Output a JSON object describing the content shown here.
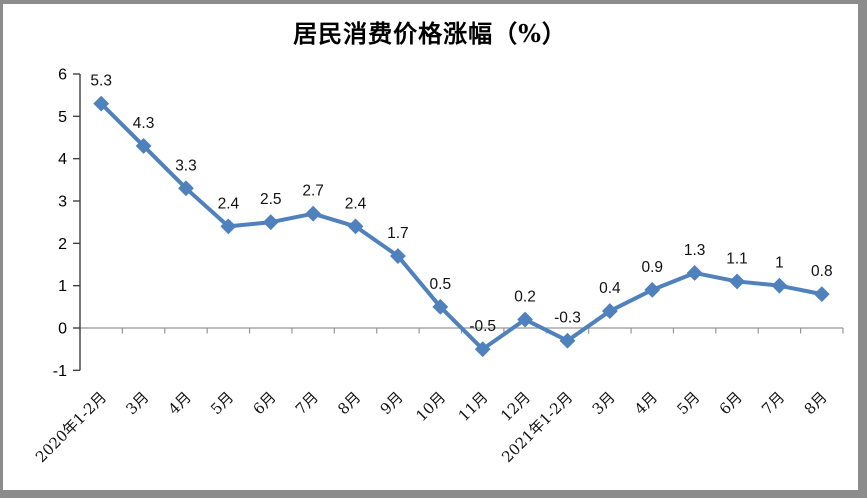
{
  "chart_data": {
    "type": "line",
    "title": "居民消费价格涨幅（%）",
    "categories": [
      "2020年1-2月",
      "3月",
      "4月",
      "5月",
      "6月",
      "7月",
      "8月",
      "9月",
      "10月",
      "11月",
      "12月",
      "2021年1-2月",
      "3月",
      "4月",
      "5月",
      "6月",
      "7月",
      "8月"
    ],
    "values": [
      5.3,
      4.3,
      3.3,
      2.4,
      2.5,
      2.7,
      2.4,
      1.7,
      0.5,
      -0.5,
      0.2,
      -0.3,
      0.4,
      0.9,
      1.3,
      1.1,
      1,
      0.8
    ],
    "data_labels": [
      "5.3",
      "4.3",
      "3.3",
      "2.4",
      "2.5",
      "2.7",
      "2.4",
      "1.7",
      "0.5",
      "-0.5",
      "0.2",
      "-0.3",
      "0.4",
      "0.9",
      "1.3",
      "1.1",
      "1",
      "0.8"
    ],
    "xlabel": "",
    "ylabel": "",
    "ylim": [
      -1,
      6
    ],
    "yticks": [
      6,
      5,
      4,
      3,
      2,
      1,
      0,
      -1
    ],
    "grid": false,
    "legend": null,
    "marker": "diamond",
    "colors": {
      "line": "#4F81BD",
      "marker": "#4F81BD",
      "y_axis": "#404040",
      "x_axis": "#969696",
      "frame_border": "#8c8c8c",
      "text": "#000000"
    }
  }
}
